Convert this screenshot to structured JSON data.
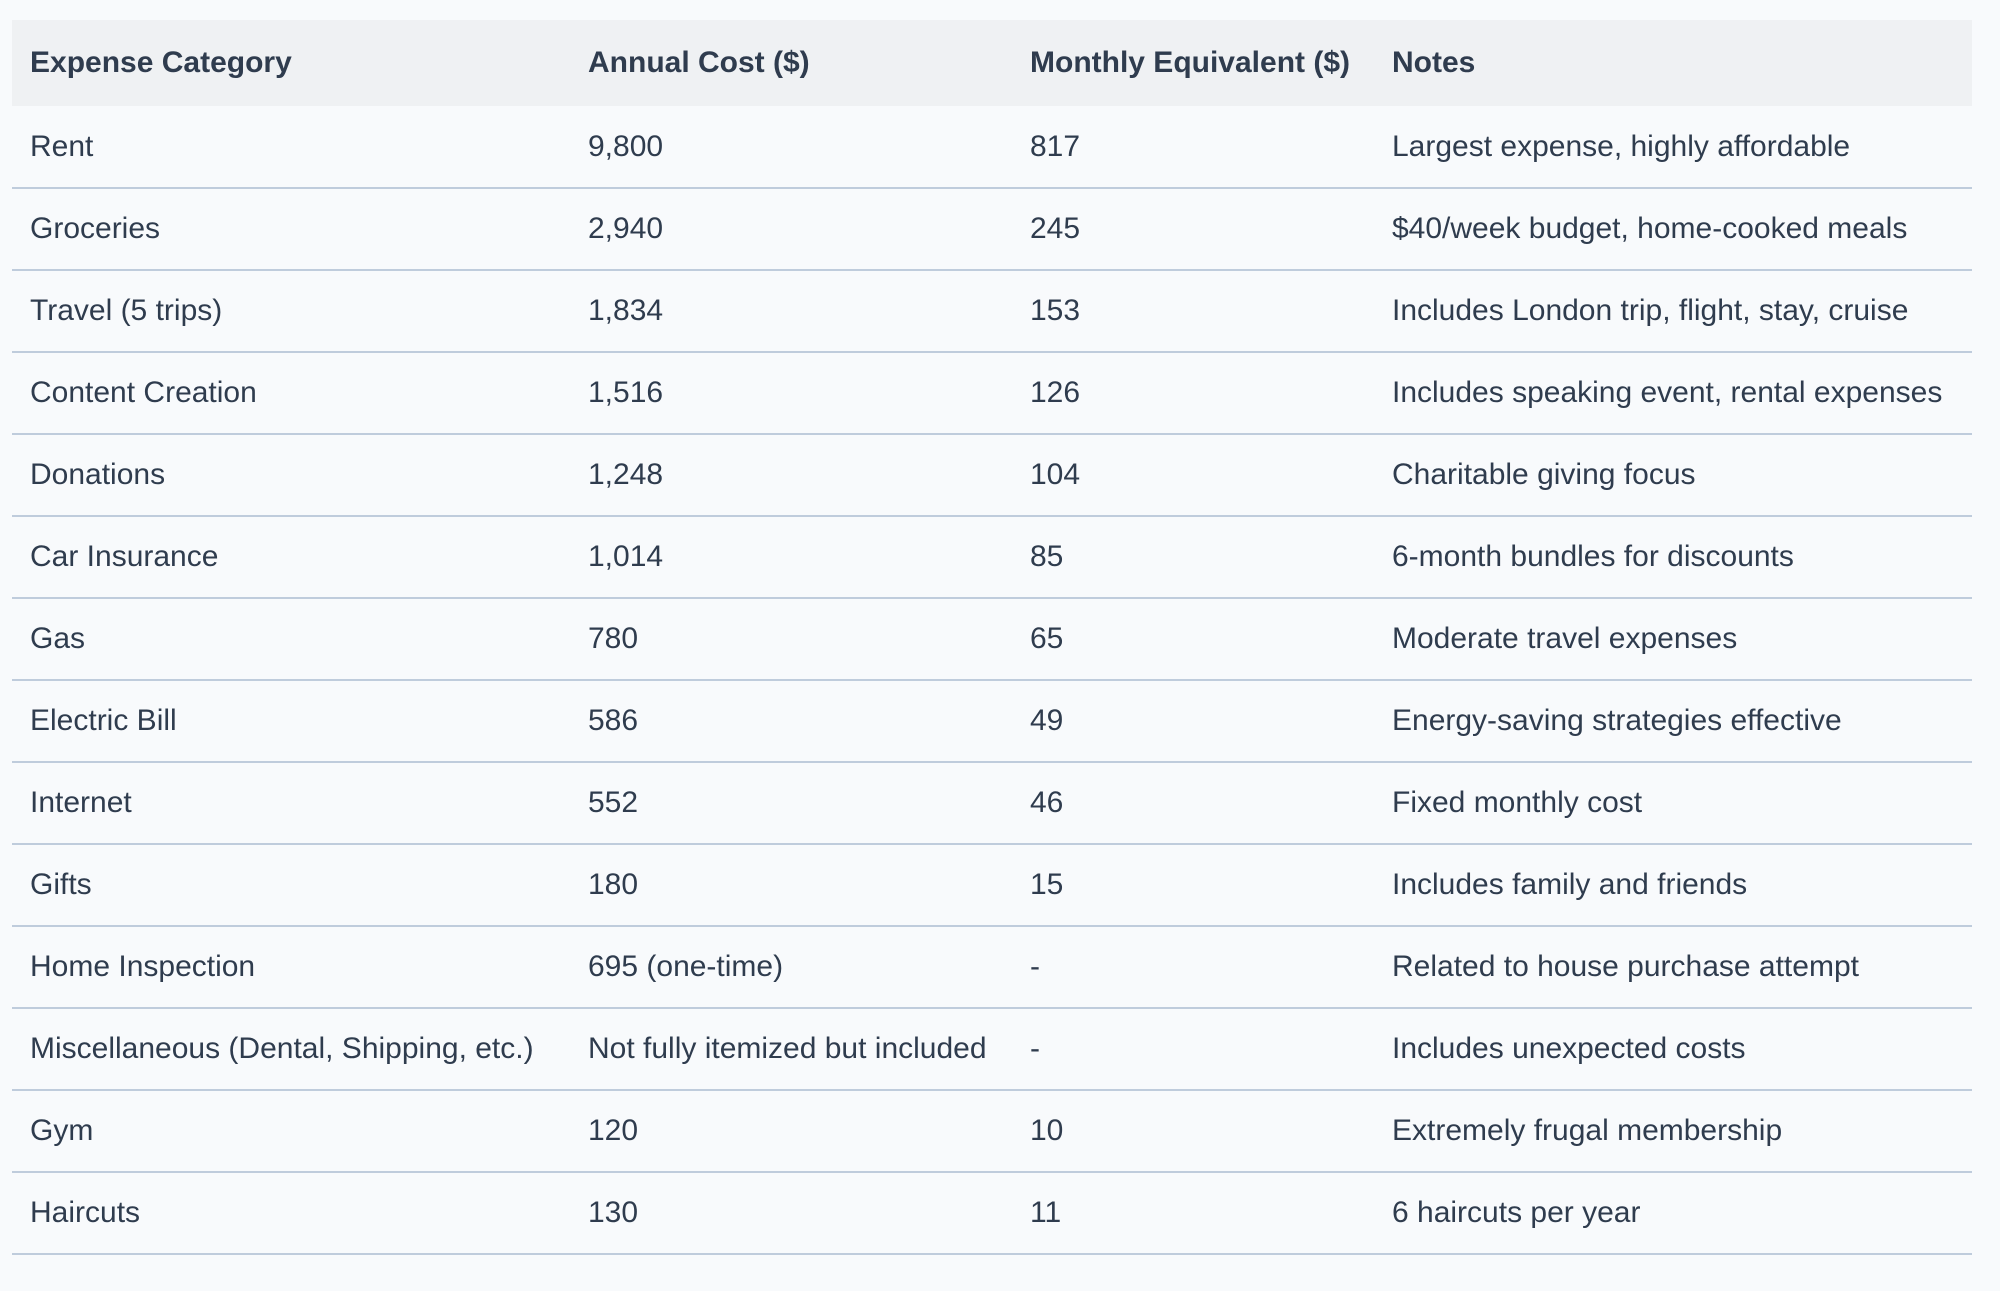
{
  "chart_data": {
    "type": "table",
    "title": "",
    "columns": [
      "Expense Category",
      "Annual Cost ($)",
      "Monthly Equivalent ($)",
      "Notes"
    ],
    "rows": [
      [
        "Rent",
        "9,800",
        "817",
        "Largest expense, highly affordable"
      ],
      [
        "Groceries",
        "2,940",
        "245",
        "$40/week budget, home-cooked meals"
      ],
      [
        "Travel (5 trips)",
        "1,834",
        "153",
        "Includes London trip, flight, stay, cruise"
      ],
      [
        "Content Creation",
        "1,516",
        "126",
        "Includes speaking event, rental expenses"
      ],
      [
        "Donations",
        "1,248",
        "104",
        "Charitable giving focus"
      ],
      [
        "Car Insurance",
        "1,014",
        "85",
        "6-month bundles for discounts"
      ],
      [
        "Gas",
        "780",
        "65",
        "Moderate travel expenses"
      ],
      [
        "Electric Bill",
        "586",
        "49",
        "Energy-saving strategies effective"
      ],
      [
        "Internet",
        "552",
        "46",
        "Fixed monthly cost"
      ],
      [
        "Gifts",
        "180",
        "15",
        "Includes family and friends"
      ],
      [
        "Home Inspection",
        "695 (one-time)",
        "-",
        "Related to house purchase attempt"
      ],
      [
        "Miscellaneous (Dental, Shipping, etc.)",
        "Not fully itemized but included",
        "-",
        "Includes unexpected costs"
      ],
      [
        "Gym",
        "120",
        "10",
        "Extremely frugal membership"
      ],
      [
        "Haircuts",
        "130",
        "11",
        "6 haircuts per year"
      ]
    ]
  },
  "colors": {
    "page_bg": "#f8fafc",
    "row_bg": "#f8fafc",
    "header_bg": "#eff1f3",
    "divider": "#bfccdc",
    "text": "#2f3c4e"
  }
}
